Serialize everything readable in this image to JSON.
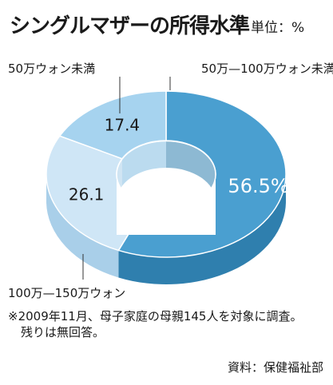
{
  "title": "シングルマザーの所得水準",
  "unit": "単位：%",
  "note_line1": "※2009年11月、母子家庭の母親145人を対象に調査。",
  "note_line2": "残りは無回答。",
  "source": "資料：保健福祉部",
  "chart_data": {
    "type": "pie",
    "style": "donut-3d",
    "slices": [
      {
        "label": "50万—100万ウォン未満",
        "value": 56.5,
        "value_label": "56.5%",
        "color": "#4a9fd0",
        "side_color": "#2f7fae"
      },
      {
        "label": "100万—150万ウォン",
        "value": 26.1,
        "value_label": "26.1",
        "color": "#cfe6f6",
        "side_color": "#a9cfe9"
      },
      {
        "label": "50万ウォン未満",
        "value": 17.4,
        "value_label": "17.4",
        "color": "#a6d3ef",
        "side_color": "#84bde2"
      }
    ]
  }
}
